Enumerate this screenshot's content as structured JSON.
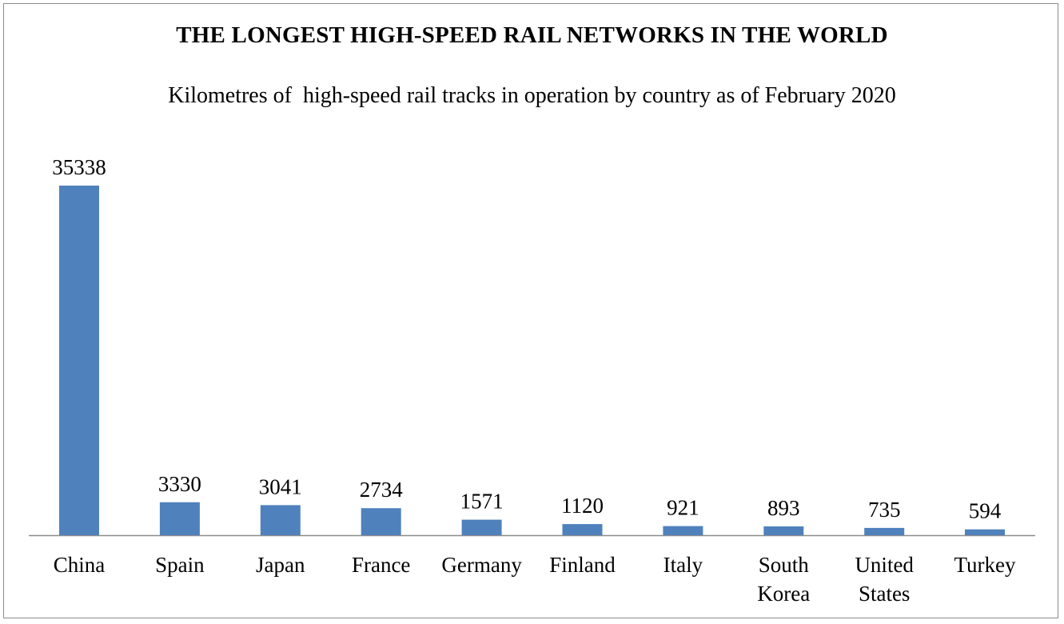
{
  "chart_data": {
    "type": "bar",
    "title": "THE LONGEST HIGH-SPEED RAIL NETWORKS IN THE WORLD",
    "subtitle": "Kilometres of  high-speed rail tracks in operation by country as of February 2020",
    "xlabel": "",
    "ylabel": "",
    "categories": [
      "China",
      "Spain",
      "Japan",
      "France",
      "Germany",
      "Finland",
      "Italy",
      "South Korea",
      "United States",
      "Turkey"
    ],
    "category_lines": [
      [
        "China"
      ],
      [
        "Spain"
      ],
      [
        "Japan"
      ],
      [
        "France"
      ],
      [
        "Germany"
      ],
      [
        "Finland"
      ],
      [
        "Italy"
      ],
      [
        "South",
        "Korea"
      ],
      [
        "United",
        "States"
      ],
      [
        "Turkey"
      ]
    ],
    "values": [
      35338,
      3330,
      3041,
      2734,
      1571,
      1120,
      921,
      893,
      735,
      594
    ],
    "data_labels": [
      "35338",
      "3330",
      "3041",
      "2734",
      "1571",
      "1120",
      "921",
      "893",
      "735",
      "594"
    ],
    "ylim": [
      0,
      35338
    ],
    "bar_color": "#4f81bd",
    "axis_color": "#8c8c8c",
    "grid": false,
    "legend": "none"
  }
}
